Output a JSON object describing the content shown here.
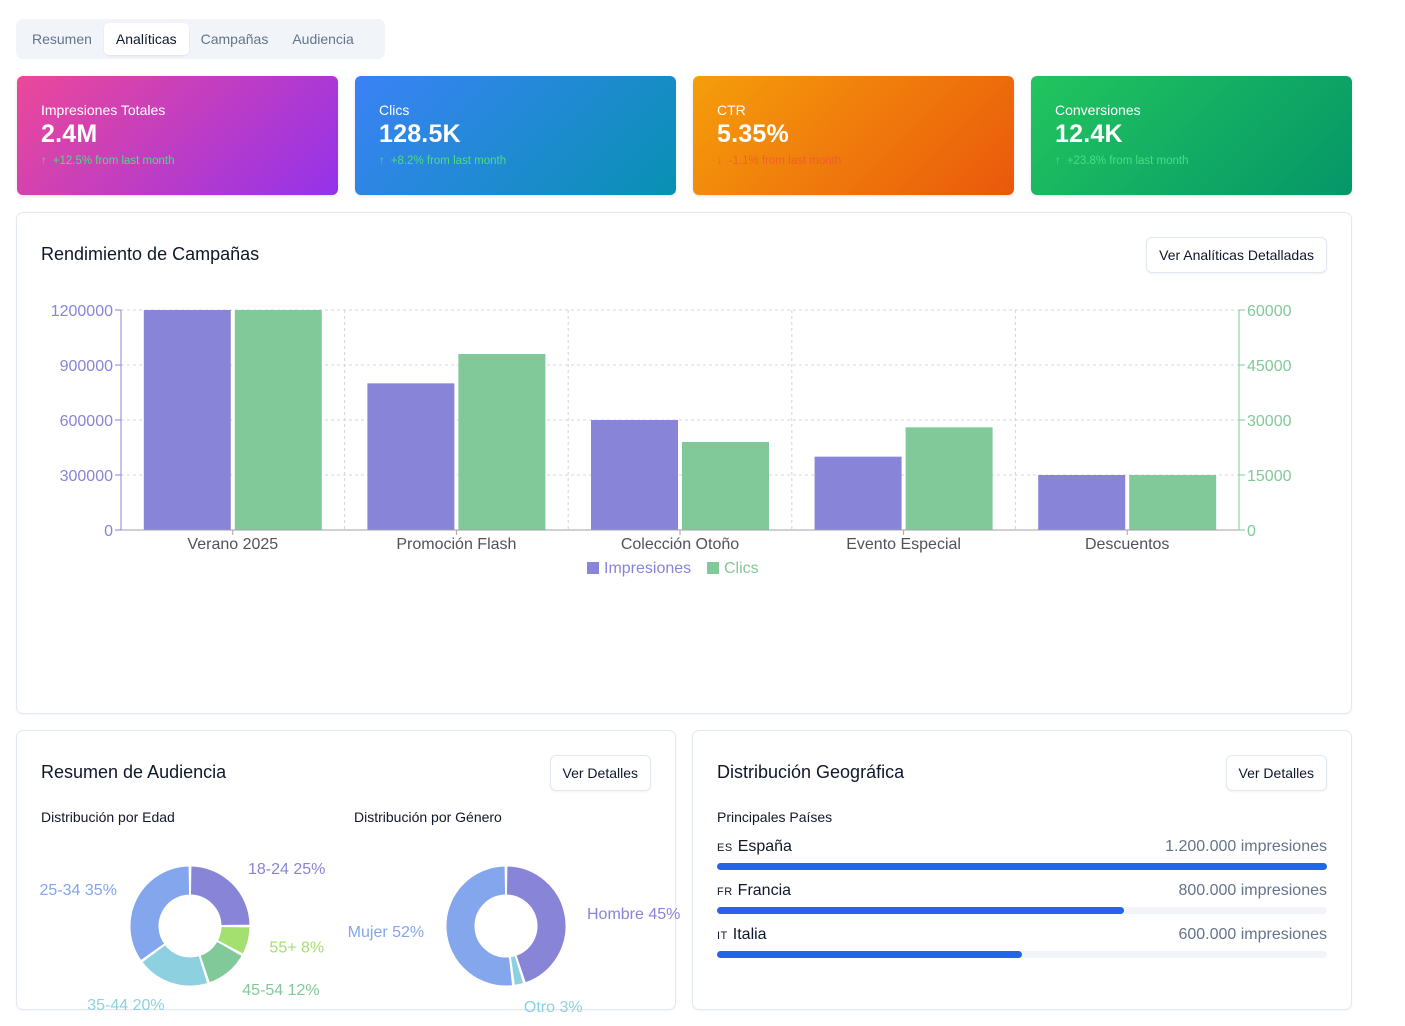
{
  "tabs": [
    "Resumen",
    "Analíticas",
    "Campañas",
    "Audiencia"
  ],
  "stats": [
    {
      "label": "Impresiones Totales",
      "value": "2.4M",
      "change": "+12.5% from last month",
      "arrow": "↑"
    },
    {
      "label": "Clics",
      "value": "128.5K",
      "change": "+8.2% from last month",
      "arrow": "↑"
    },
    {
      "label": "CTR",
      "value": "5.35%",
      "change": "-1.1% from last month",
      "arrow": "↓"
    },
    {
      "label": "Conversiones",
      "value": "12.4K",
      "change": "+23.8% from last month",
      "arrow": "↑"
    }
  ],
  "performance": {
    "title": "Rendimiento de Campañas",
    "button": "Ver Analíticas Detalladas"
  },
  "audience": {
    "title": "Resumen de Audiencia",
    "button": "Ver Detalles",
    "age_title": "Distribución por Edad",
    "gender_title": "Distribución por Género"
  },
  "geo": {
    "title": "Distribución Geográfica",
    "button": "Ver Detalles",
    "subtitle": "Principales Países",
    "countries": [
      {
        "code": "ES",
        "name": "España",
        "impressions": "1.200.000 impresiones",
        "share": 1.0
      },
      {
        "code": "FR",
        "name": "Francia",
        "impressions": "800.000 impresiones",
        "share": 0.667
      },
      {
        "code": "IT",
        "name": "Italia",
        "impressions": "600.000 impresiones",
        "share": 0.5
      }
    ]
  },
  "colors": {
    "impresiones": "#8884d8",
    "clics": "#82c99a",
    "bar_fill": "#2563eb"
  },
  "chart_data": [
    {
      "type": "bar",
      "categories": [
        "Verano 2025",
        "Promoción Flash",
        "Colección Otoño",
        "Evento Especial",
        "Descuentos"
      ],
      "series": [
        {
          "name": "Impresiones",
          "axis": "left",
          "color": "#8884d8",
          "values": [
            1200000,
            800000,
            600000,
            400000,
            300000
          ]
        },
        {
          "name": "Clics",
          "axis": "right",
          "color": "#82c99a",
          "values": [
            60000,
            48000,
            24000,
            28000,
            15000
          ]
        }
      ],
      "ylim_left": [
        0,
        1200000
      ],
      "yticks_left": [
        "0",
        "300000",
        "600000",
        "900000",
        "1200000"
      ],
      "ylim_right": [
        0,
        60000
      ],
      "yticks_right": [
        "0",
        "15000",
        "30000",
        "45000",
        "60000"
      ],
      "grid": true,
      "legend": "bottom"
    },
    {
      "type": "pie",
      "slices": [
        {
          "label": "18-24",
          "value": 25,
          "text": "18-24 25%",
          "color": "#8884d8"
        },
        {
          "label": "55+",
          "value": 8,
          "text": "55+ 8%",
          "color": "#a3e070"
        },
        {
          "label": "45-54",
          "value": 12,
          "text": "45-54 12%",
          "color": "#82c99a"
        },
        {
          "label": "35-44",
          "value": 20,
          "text": "35-44 20%",
          "color": "#8dd1e1"
        },
        {
          "label": "25-34",
          "value": 35,
          "text": "25-34 35%",
          "color": "#83a6ed"
        }
      ]
    },
    {
      "type": "pie",
      "slices": [
        {
          "label": "Hombre",
          "value": 45,
          "text": "Hombre 45%",
          "color": "#8884d8"
        },
        {
          "label": "Otro",
          "value": 3,
          "text": "Otro 3%",
          "color": "#8dd1e1"
        },
        {
          "label": "Mujer",
          "value": 52,
          "text": "Mujer 52%",
          "color": "#83a6ed"
        }
      ]
    }
  ]
}
